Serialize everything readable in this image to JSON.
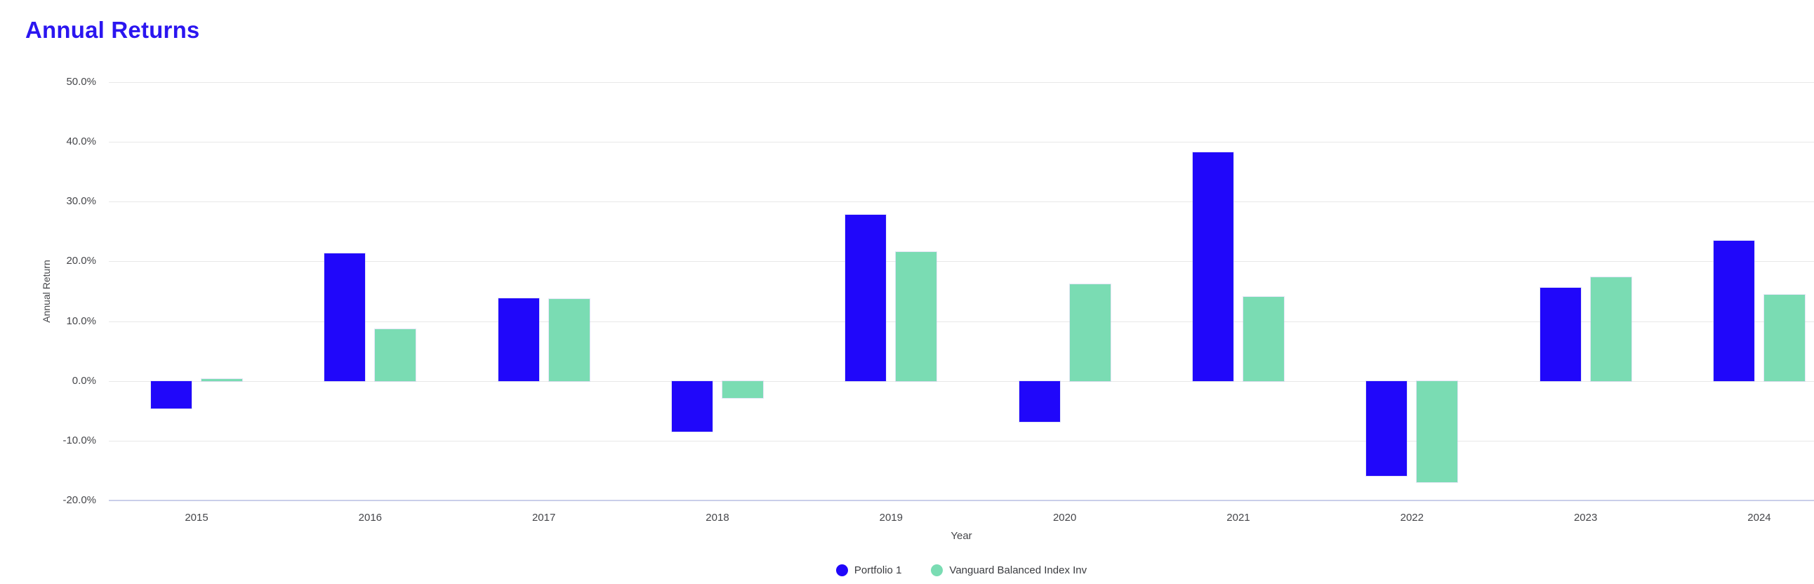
{
  "page": {
    "title": "Annual Returns"
  },
  "colors": {
    "title_text": "#2B16F0",
    "portfolio1_bar": "#2007FA",
    "benchmark_bar": "#7ADCB3",
    "gridline": "#E8E8E8",
    "axis_baseline": "#C9CEE9",
    "tick_label_text": "#45464A",
    "axis_title_text": "#45464A",
    "legend_label_text": "#3A3B3F"
  },
  "chart_data": {
    "type": "bar",
    "title": "Annual Returns",
    "xlabel": "Year",
    "ylabel": "Annual Return",
    "categories": [
      "2015",
      "2016",
      "2017",
      "2018",
      "2019",
      "2020",
      "2021",
      "2022",
      "2023",
      "2024"
    ],
    "series": [
      {
        "name": "Portfolio 1",
        "color": "#2007FA",
        "values": [
          -4.6,
          21.4,
          13.8,
          -8.5,
          27.8,
          -6.9,
          38.2,
          -15.9,
          15.6,
          23.5
        ]
      },
      {
        "name": "Vanguard Balanced Index Inv",
        "color": "#7ADCB3",
        "values": [
          0.3,
          8.6,
          13.7,
          -2.8,
          21.6,
          16.2,
          14.1,
          -16.9,
          17.4,
          14.4
        ]
      }
    ],
    "ylim": [
      -20,
      50
    ],
    "ytick_step": 10,
    "ytick_labels": [
      "50.0%",
      "40.0%",
      "30.0%",
      "20.0%",
      "10.0%",
      "0.0%",
      "-10.0%",
      "-20.0%"
    ],
    "grid": true,
    "legend_position": "bottom"
  }
}
